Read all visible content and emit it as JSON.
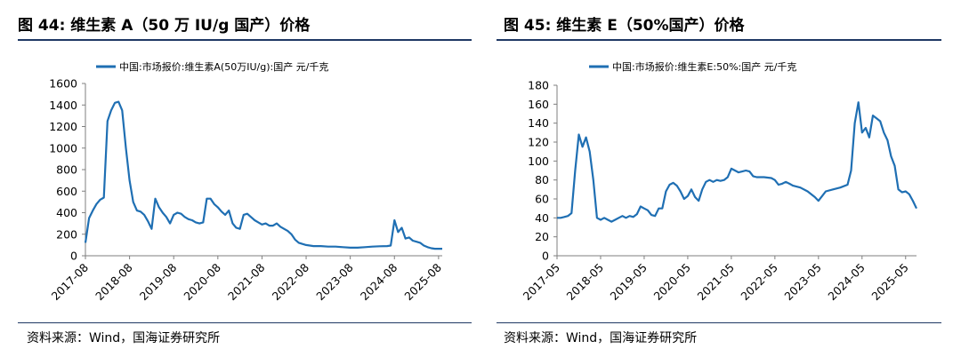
{
  "charts": [
    {
      "title": "图 44:  维生素 A（50 万 IU/g 国产）价格",
      "source": "资料来源：Wind，国海证券研究所",
      "chart_data": {
        "type": "line",
        "series": [
          {
            "name": "中国:市场报价:维生素A(50万IU/g):国产 元/千克",
            "color": "#1f6fb3"
          }
        ],
        "y_ticks": [
          "1600",
          "1400",
          "1200",
          "1000",
          "800",
          "600",
          "400",
          "200",
          "0"
        ],
        "x_ticks": [
          "2017-08",
          "2018-08",
          "2019-08",
          "2020-08",
          "2021-08",
          "2022-08",
          "2023-08",
          "2024-08",
          "2025-08"
        ],
        "ylim": [
          0,
          1600
        ],
        "xlim": [
          "2017-08",
          "2025-09"
        ],
        "points": [
          [
            "2017-08",
            120
          ],
          [
            "2017-09",
            350
          ],
          [
            "2017-10",
            420
          ],
          [
            "2017-11",
            480
          ],
          [
            "2017-12",
            520
          ],
          [
            "2018-01",
            540
          ],
          [
            "2018-02",
            1250
          ],
          [
            "2018-03",
            1350
          ],
          [
            "2018-04",
            1420
          ],
          [
            "2018-05",
            1430
          ],
          [
            "2018-06",
            1350
          ],
          [
            "2018-07",
            1000
          ],
          [
            "2018-08",
            700
          ],
          [
            "2018-09",
            500
          ],
          [
            "2018-10",
            420
          ],
          [
            "2018-11",
            410
          ],
          [
            "2018-12",
            380
          ],
          [
            "2019-01",
            320
          ],
          [
            "2019-02",
            250
          ],
          [
            "2019-03",
            530
          ],
          [
            "2019-04",
            450
          ],
          [
            "2019-05",
            400
          ],
          [
            "2019-06",
            360
          ],
          [
            "2019-07",
            300
          ],
          [
            "2019-08",
            380
          ],
          [
            "2019-09",
            400
          ],
          [
            "2019-10",
            390
          ],
          [
            "2019-11",
            360
          ],
          [
            "2019-12",
            340
          ],
          [
            "2020-01",
            330
          ],
          [
            "2020-02",
            310
          ],
          [
            "2020-03",
            300
          ],
          [
            "2020-04",
            310
          ],
          [
            "2020-05",
            530
          ],
          [
            "2020-06",
            530
          ],
          [
            "2020-07",
            480
          ],
          [
            "2020-08",
            450
          ],
          [
            "2020-09",
            410
          ],
          [
            "2020-10",
            380
          ],
          [
            "2020-11",
            420
          ],
          [
            "2020-12",
            300
          ],
          [
            "2021-01",
            260
          ],
          [
            "2021-02",
            250
          ],
          [
            "2021-03",
            380
          ],
          [
            "2021-04",
            390
          ],
          [
            "2021-05",
            360
          ],
          [
            "2021-06",
            330
          ],
          [
            "2021-07",
            310
          ],
          [
            "2021-08",
            290
          ],
          [
            "2021-09",
            300
          ],
          [
            "2021-10",
            280
          ],
          [
            "2021-11",
            280
          ],
          [
            "2021-12",
            300
          ],
          [
            "2022-01",
            270
          ],
          [
            "2022-02",
            250
          ],
          [
            "2022-03",
            230
          ],
          [
            "2022-04",
            200
          ],
          [
            "2022-05",
            150
          ],
          [
            "2022-06",
            120
          ],
          [
            "2022-07",
            110
          ],
          [
            "2022-08",
            100
          ],
          [
            "2022-09",
            95
          ],
          [
            "2022-10",
            90
          ],
          [
            "2022-11",
            90
          ],
          [
            "2022-12",
            90
          ],
          [
            "2023-02",
            85
          ],
          [
            "2023-04",
            85
          ],
          [
            "2023-06",
            80
          ],
          [
            "2023-08",
            75
          ],
          [
            "2023-10",
            75
          ],
          [
            "2023-12",
            80
          ],
          [
            "2024-02",
            85
          ],
          [
            "2024-04",
            88
          ],
          [
            "2024-06",
            90
          ],
          [
            "2024-07",
            95
          ],
          [
            "2024-08",
            330
          ],
          [
            "2024-09",
            220
          ],
          [
            "2024-10",
            260
          ],
          [
            "2024-11",
            160
          ],
          [
            "2024-12",
            170
          ],
          [
            "2025-01",
            140
          ],
          [
            "2025-02",
            130
          ],
          [
            "2025-03",
            120
          ],
          [
            "2025-04",
            95
          ],
          [
            "2025-05",
            80
          ],
          [
            "2025-06",
            70
          ],
          [
            "2025-07",
            65
          ],
          [
            "2025-08",
            65
          ],
          [
            "2025-09",
            65
          ]
        ]
      }
    },
    {
      "title": "图 45:  维生素 E（50%国产）价格",
      "source": "资料来源：Wind，国海证券研究所",
      "chart_data": {
        "type": "line",
        "series": [
          {
            "name": "中国:市场报价:维生素E:50%:国产 元/千克",
            "color": "#1f6fb3"
          }
        ],
        "y_ticks": [
          "180",
          "160",
          "140",
          "120",
          "100",
          "80",
          "60",
          "40",
          "20",
          "0"
        ],
        "x_ticks": [
          "2017-05",
          "2018-05",
          "2019-05",
          "2020-05",
          "2021-05",
          "2022-05",
          "2023-05",
          "2024-05",
          "2025-05"
        ],
        "ylim": [
          0,
          180
        ],
        "xlim": [
          "2017-05",
          "2025-08"
        ],
        "points": [
          [
            "2017-05",
            40
          ],
          [
            "2017-06",
            40
          ],
          [
            "2017-07",
            41
          ],
          [
            "2017-08",
            42
          ],
          [
            "2017-09",
            45
          ],
          [
            "2017-10",
            90
          ],
          [
            "2017-11",
            128
          ],
          [
            "2017-12",
            115
          ],
          [
            "2018-01",
            125
          ],
          [
            "2018-02",
            110
          ],
          [
            "2018-03",
            80
          ],
          [
            "2018-04",
            40
          ],
          [
            "2018-05",
            38
          ],
          [
            "2018-06",
            40
          ],
          [
            "2018-07",
            38
          ],
          [
            "2018-08",
            36
          ],
          [
            "2018-09",
            38
          ],
          [
            "2018-10",
            40
          ],
          [
            "2018-11",
            42
          ],
          [
            "2018-12",
            40
          ],
          [
            "2019-01",
            42
          ],
          [
            "2019-02",
            41
          ],
          [
            "2019-03",
            44
          ],
          [
            "2019-04",
            52
          ],
          [
            "2019-05",
            50
          ],
          [
            "2019-06",
            48
          ],
          [
            "2019-07",
            43
          ],
          [
            "2019-08",
            42
          ],
          [
            "2019-09",
            50
          ],
          [
            "2019-10",
            50
          ],
          [
            "2019-11",
            68
          ],
          [
            "2019-12",
            75
          ],
          [
            "2020-01",
            77
          ],
          [
            "2020-02",
            74
          ],
          [
            "2020-03",
            68
          ],
          [
            "2020-04",
            60
          ],
          [
            "2020-05",
            63
          ],
          [
            "2020-06",
            70
          ],
          [
            "2020-07",
            62
          ],
          [
            "2020-08",
            58
          ],
          [
            "2020-09",
            70
          ],
          [
            "2020-10",
            78
          ],
          [
            "2020-11",
            80
          ],
          [
            "2020-12",
            78
          ],
          [
            "2021-01",
            80
          ],
          [
            "2021-02",
            79
          ],
          [
            "2021-03",
            80
          ],
          [
            "2021-04",
            83
          ],
          [
            "2021-05",
            92
          ],
          [
            "2021-06",
            90
          ],
          [
            "2021-07",
            88
          ],
          [
            "2021-08",
            89
          ],
          [
            "2021-09",
            90
          ],
          [
            "2021-10",
            89
          ],
          [
            "2021-11",
            84
          ],
          [
            "2021-12",
            83
          ],
          [
            "2022-02",
            83
          ],
          [
            "2022-04",
            82
          ],
          [
            "2022-05",
            80
          ],
          [
            "2022-06",
            75
          ],
          [
            "2022-07",
            76
          ],
          [
            "2022-08",
            78
          ],
          [
            "2022-09",
            76
          ],
          [
            "2022-10",
            74
          ],
          [
            "2022-12",
            72
          ],
          [
            "2023-02",
            68
          ],
          [
            "2023-04",
            62
          ],
          [
            "2023-05",
            58
          ],
          [
            "2023-06",
            63
          ],
          [
            "2023-07",
            68
          ],
          [
            "2023-09",
            70
          ],
          [
            "2023-11",
            72
          ],
          [
            "2024-01",
            75
          ],
          [
            "2024-02",
            90
          ],
          [
            "2024-03",
            140
          ],
          [
            "2024-04",
            162
          ],
          [
            "2024-05",
            130
          ],
          [
            "2024-06",
            135
          ],
          [
            "2024-07",
            125
          ],
          [
            "2024-08",
            148
          ],
          [
            "2024-09",
            145
          ],
          [
            "2024-10",
            142
          ],
          [
            "2024-11",
            130
          ],
          [
            "2024-12",
            122
          ],
          [
            "2025-01",
            105
          ],
          [
            "2025-02",
            95
          ],
          [
            "2025-03",
            70
          ],
          [
            "2025-04",
            67
          ],
          [
            "2025-05",
            68
          ],
          [
            "2025-06",
            65
          ],
          [
            "2025-07",
            58
          ],
          [
            "2025-08",
            50
          ]
        ]
      }
    }
  ]
}
